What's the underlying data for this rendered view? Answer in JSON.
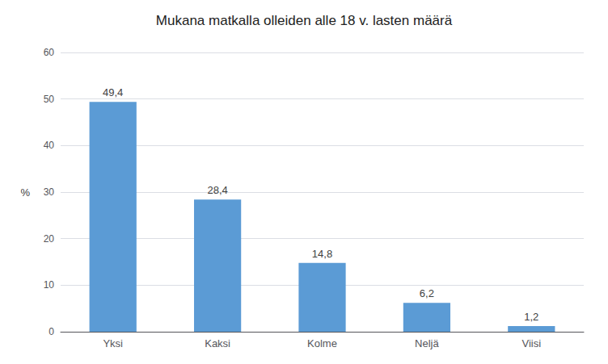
{
  "chart_data": {
    "type": "bar",
    "title": "Mukana matkalla olleiden alle 18 v. lasten määrä",
    "ylabel": "%",
    "categories": [
      "Yksi",
      "Kaksi",
      "Kolme",
      "Neljä",
      "Viisi"
    ],
    "values": [
      49.4,
      28.4,
      14.8,
      6.2,
      1.2
    ],
    "value_labels": [
      "49,4",
      "28,4",
      "14,8",
      "6,2",
      "1,2"
    ],
    "data_labels": true,
    "color": "#5B9BD5",
    "ylim": [
      0,
      60
    ],
    "yticks": [
      0,
      10,
      20,
      30,
      40,
      50,
      60
    ],
    "grid": true
  }
}
